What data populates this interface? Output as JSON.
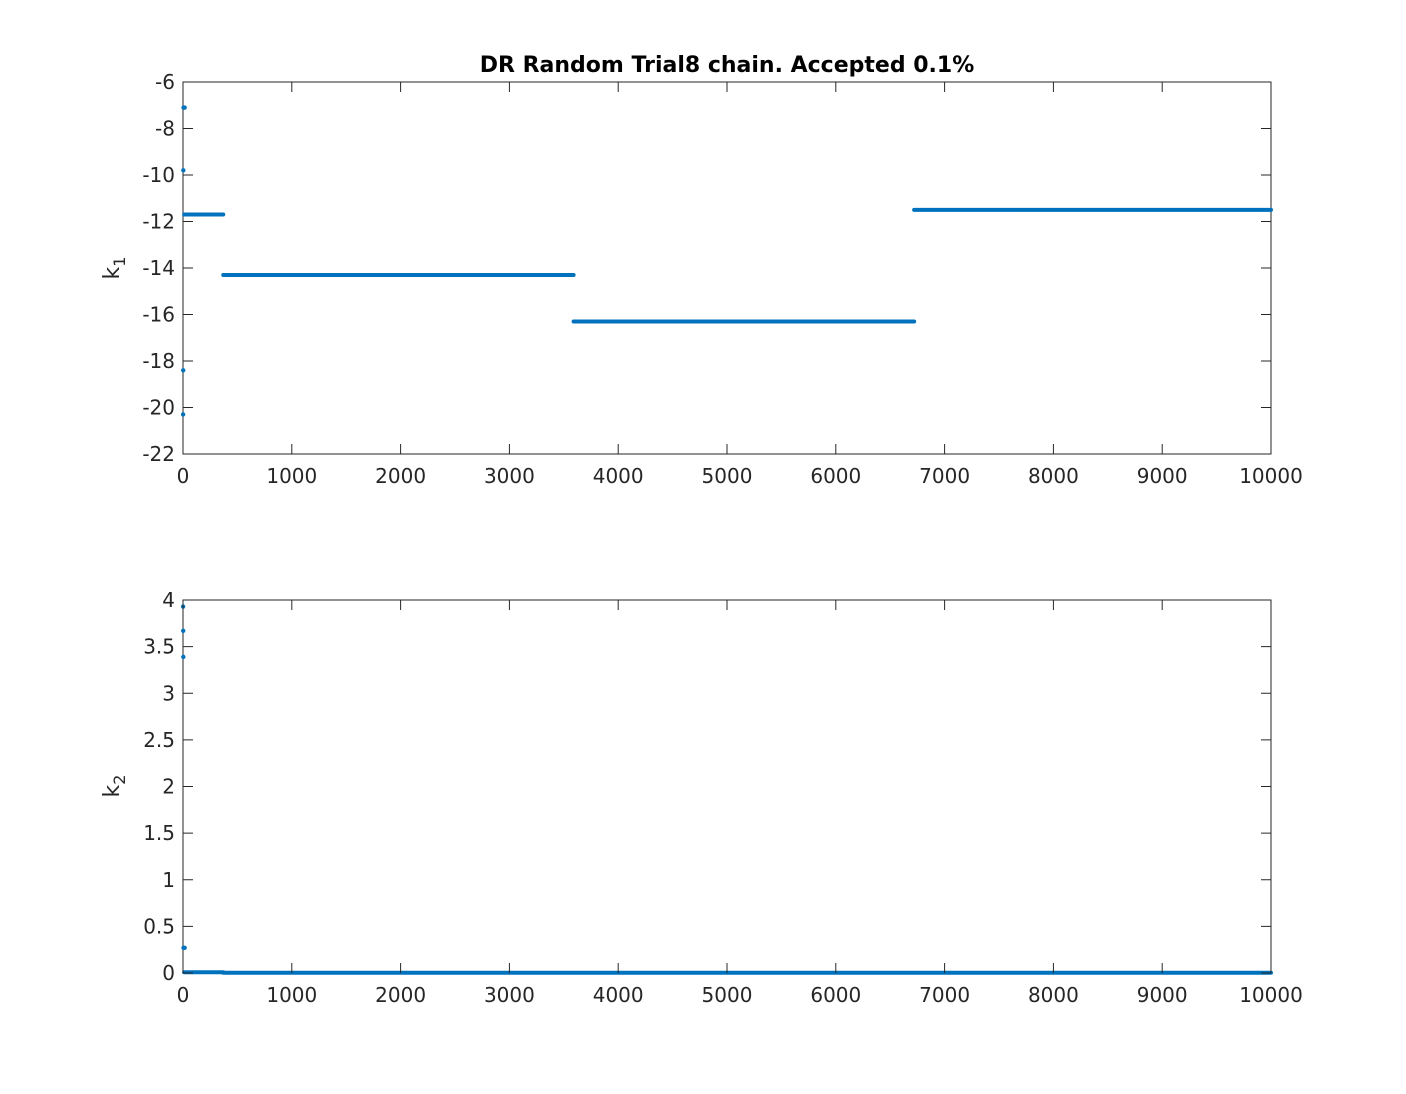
{
  "figure": {
    "background": "#ffffff"
  },
  "chart_data": [
    {
      "type": "scatter",
      "title": "DR Random Trial8 chain. Accepted 0.1%",
      "ylabel": {
        "main": "k",
        "sub": "1"
      },
      "xlim": [
        0,
        10000
      ],
      "ylim": [
        -22,
        -6
      ],
      "xticks": [
        0,
        1000,
        2000,
        3000,
        4000,
        5000,
        6000,
        7000,
        8000,
        9000,
        10000
      ],
      "yticks": [
        -22,
        -20,
        -18,
        -16,
        -14,
        -12,
        -10,
        -8,
        -6
      ],
      "color": "#0072BD",
      "points": [
        {
          "x": 1,
          "y": -20.3
        },
        {
          "x": 2,
          "y": -18.4
        },
        {
          "x": 3,
          "y": -9.8
        },
        {
          "x": 5,
          "y": -7.1
        },
        {
          "x": 15,
          "y": -7.1
        }
      ],
      "segments": [
        {
          "x_start": 10,
          "x_end": 370,
          "y": -11.7
        },
        {
          "x_start": 370,
          "x_end": 3590,
          "y": -14.3
        },
        {
          "x_start": 3590,
          "x_end": 6720,
          "y": -16.3
        },
        {
          "x_start": 6720,
          "x_end": 10000,
          "y": -11.5
        }
      ]
    },
    {
      "type": "scatter",
      "title": "",
      "ylabel": {
        "main": "k",
        "sub": "2"
      },
      "xlim": [
        0,
        10000
      ],
      "ylim": [
        0,
        4
      ],
      "xticks": [
        0,
        1000,
        2000,
        3000,
        4000,
        5000,
        6000,
        7000,
        8000,
        9000,
        10000
      ],
      "yticks": [
        0,
        0.5,
        1,
        1.5,
        2,
        2.5,
        3,
        3.5,
        4
      ],
      "color": "#0072BD",
      "points": [
        {
          "x": 1,
          "y": 3.93
        },
        {
          "x": 2,
          "y": 3.67
        },
        {
          "x": 3,
          "y": 3.39
        },
        {
          "x": 5,
          "y": 0.27
        },
        {
          "x": 15,
          "y": 0.27
        }
      ],
      "segments": [
        {
          "x_start": 10,
          "x_end": 370,
          "y": 0.008
        },
        {
          "x_start": 370,
          "x_end": 10000,
          "y": 0.003
        }
      ]
    }
  ]
}
